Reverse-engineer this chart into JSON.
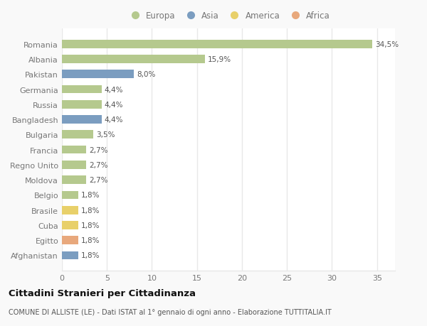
{
  "categories": [
    "Romania",
    "Albania",
    "Pakistan",
    "Germania",
    "Russia",
    "Bangladesh",
    "Bulgaria",
    "Francia",
    "Regno Unito",
    "Moldova",
    "Belgio",
    "Brasile",
    "Cuba",
    "Egitto",
    "Afghanistan"
  ],
  "values": [
    34.5,
    15.9,
    8.0,
    4.4,
    4.4,
    4.4,
    3.5,
    2.7,
    2.7,
    2.7,
    1.8,
    1.8,
    1.8,
    1.8,
    1.8
  ],
  "labels": [
    "34,5%",
    "15,9%",
    "8,0%",
    "4,4%",
    "4,4%",
    "4,4%",
    "3,5%",
    "2,7%",
    "2,7%",
    "2,7%",
    "1,8%",
    "1,8%",
    "1,8%",
    "1,8%",
    "1,8%"
  ],
  "continents": [
    "Europa",
    "Europa",
    "Asia",
    "Europa",
    "Europa",
    "Asia",
    "Europa",
    "Europa",
    "Europa",
    "Europa",
    "Europa",
    "America",
    "America",
    "Africa",
    "Asia"
  ],
  "colors": {
    "Europa": "#b5c98e",
    "Asia": "#7b9dc0",
    "America": "#e8d06a",
    "Africa": "#e8a87c"
  },
  "xlim": [
    0,
    37
  ],
  "xticks": [
    0,
    5,
    10,
    15,
    20,
    25,
    30,
    35
  ],
  "title": "Cittadini Stranieri per Cittadinanza",
  "subtitle": "COMUNE DI ALLISTE (LE) - Dati ISTAT al 1° gennaio di ogni anno - Elaborazione TUTTITALIA.IT",
  "background_color": "#f9f9f9",
  "bar_background": "#ffffff",
  "grid_color": "#e8e8e8",
  "label_color": "#777777",
  "text_color": "#555555",
  "title_color": "#111111",
  "bar_height": 0.55,
  "legend_entries": [
    "Europa",
    "Asia",
    "America",
    "Africa"
  ]
}
